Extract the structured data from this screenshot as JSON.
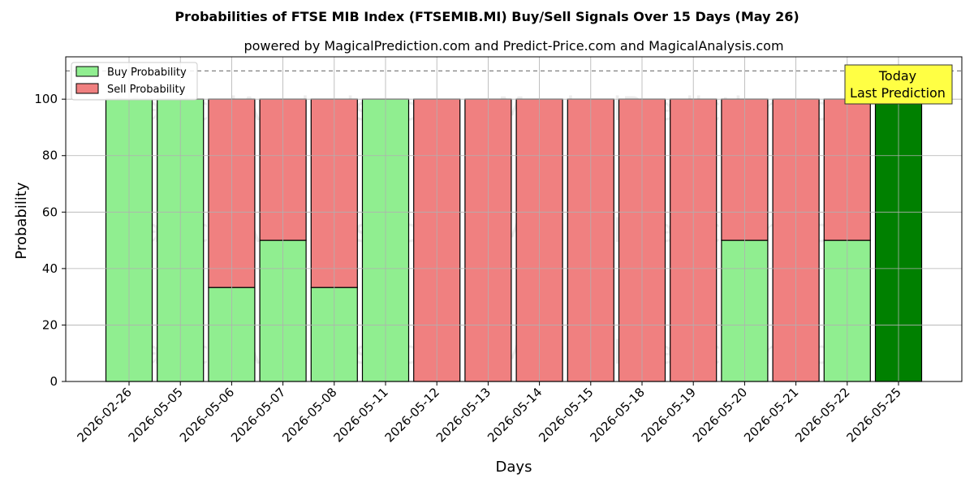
{
  "chart_data": {
    "type": "bar",
    "stacked": true,
    "title": "Probabilities of FTSE MIB Index (FTSEMIB.MI) Buy/Sell Signals Over 15 Days (May 26)",
    "subtitle": "powered by MagicalPrediction.com and Predict-Price.com and MagicalAnalysis.com",
    "xlabel": "Days",
    "ylabel": "Probability",
    "ylim": [
      0,
      115
    ],
    "yticks": [
      0,
      20,
      40,
      60,
      80,
      100
    ],
    "grid": true,
    "legend_position": "top-left",
    "reference_line": 110,
    "categories": [
      "2026-02-26",
      "2026-05-05",
      "2026-05-06",
      "2026-05-07",
      "2026-05-08",
      "2026-05-11",
      "2026-05-12",
      "2026-05-13",
      "2026-05-14",
      "2026-05-15",
      "2026-05-18",
      "2026-05-19",
      "2026-05-20",
      "2026-05-21",
      "2026-05-22",
      "2026-05-25"
    ],
    "series": [
      {
        "name": "Buy Probability",
        "color": "#90ee90",
        "values": [
          100,
          100,
          33.3,
          50,
          33.3,
          100,
          0,
          0,
          0,
          0,
          0,
          0,
          50,
          0,
          50,
          100
        ]
      },
      {
        "name": "Sell Probability",
        "color": "#f08080",
        "values": [
          0,
          0,
          66.7,
          50,
          66.7,
          0,
          100,
          100,
          100,
          100,
          100,
          100,
          50,
          100,
          50,
          0
        ]
      }
    ],
    "highlight": {
      "index": 15,
      "color": "#008000"
    },
    "annotation": {
      "lines": [
        "Today",
        "Last Prediction"
      ],
      "color": "#ffff44"
    },
    "watermarks": [
      "MagicalAnalysis.com",
      "MagicalPrediction.com"
    ]
  }
}
